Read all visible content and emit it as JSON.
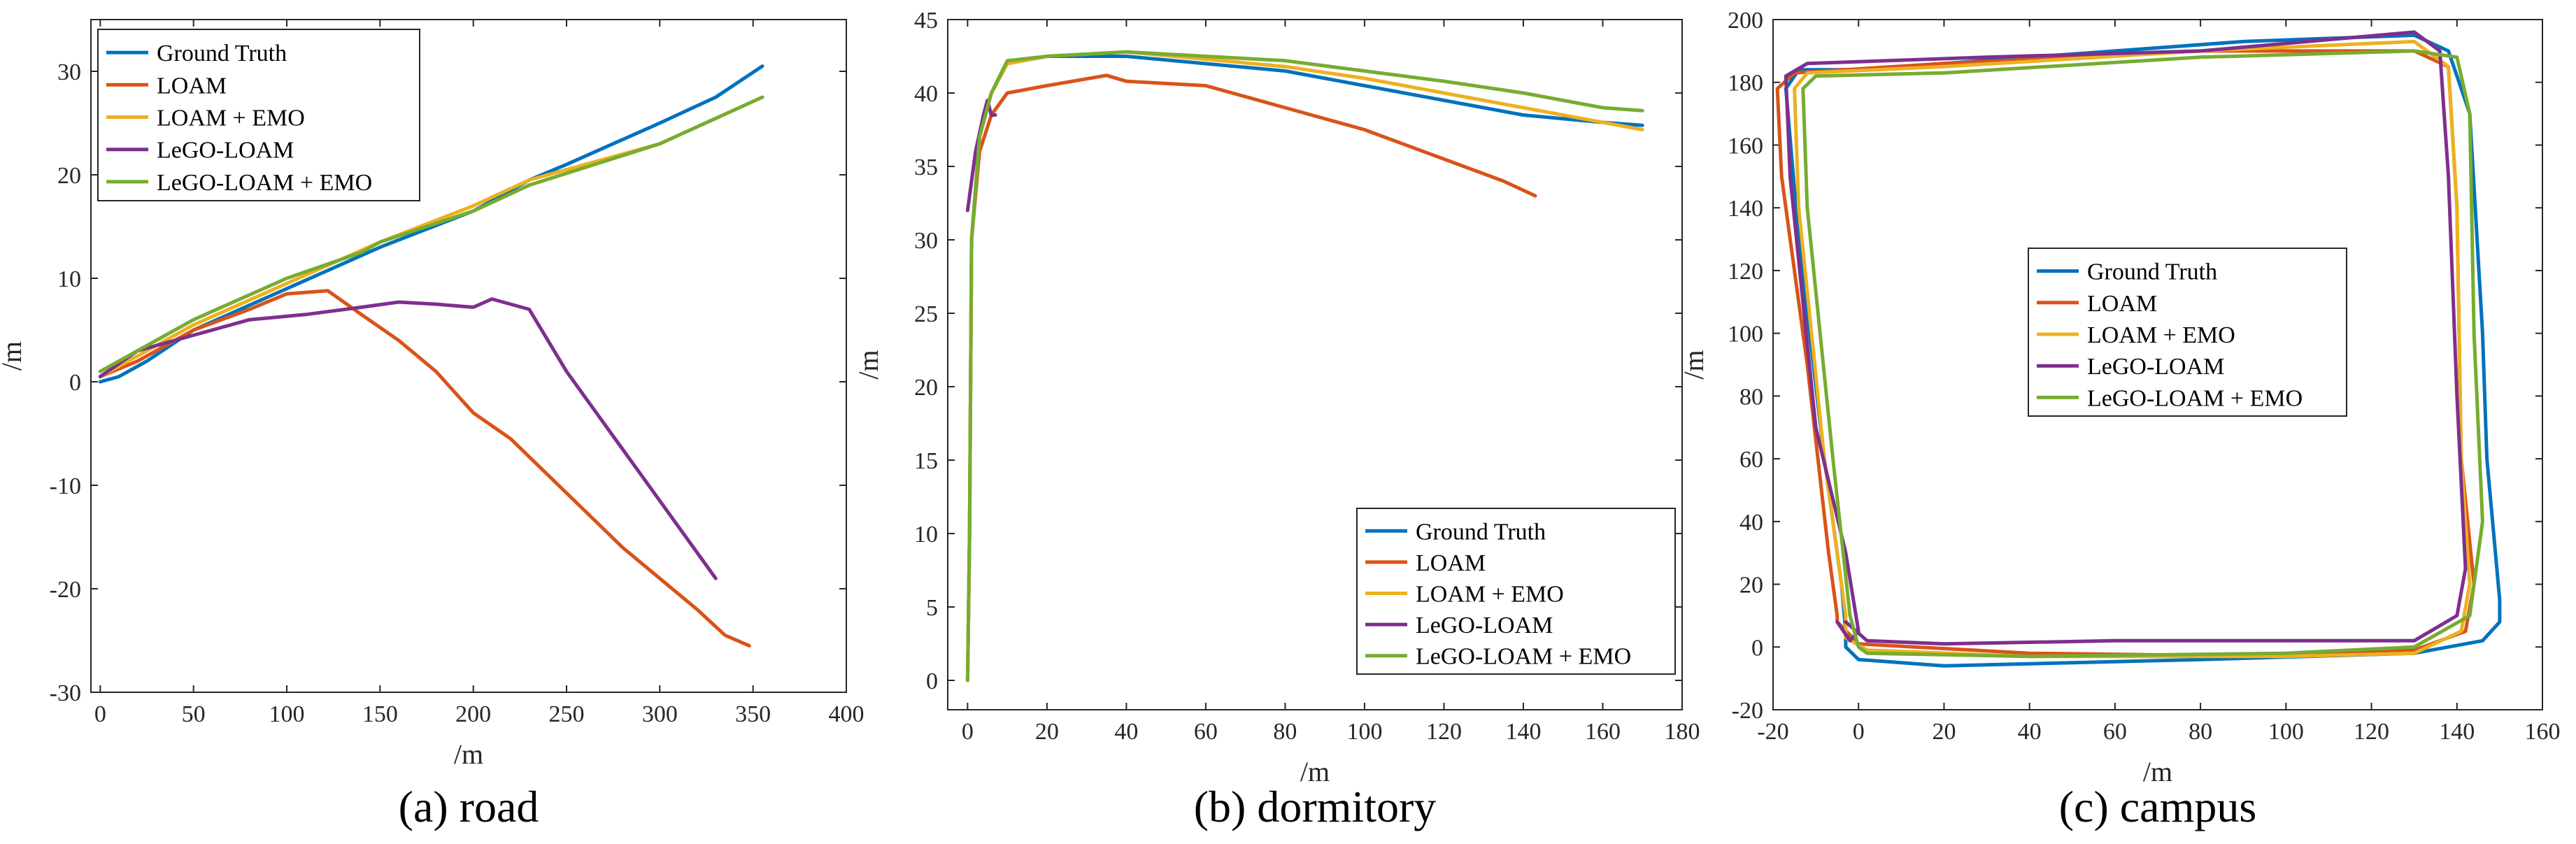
{
  "series_colors": {
    "Ground Truth": "#0072BD",
    "LOAM": "#D95319",
    "LOAM + EMO": "#EDB120",
    "LeGO-LOAM": "#7E2F8E",
    "LeGO-LOAM + EMO": "#77AC30"
  },
  "chart_data": [
    {
      "type": "line",
      "caption": "(a) road",
      "xlabel": "/m",
      "ylabel": "/m",
      "xlim": [
        -5,
        400
      ],
      "ylim": [
        -30,
        35
      ],
      "xticks": [
        0,
        50,
        100,
        150,
        200,
        250,
        300,
        350,
        400
      ],
      "yticks": [
        -30,
        -20,
        -10,
        0,
        10,
        20,
        30
      ],
      "legend_position": "top-left",
      "legend": [
        "Ground Truth",
        "LOAM",
        "LOAM + EMO",
        "LeGO-LOAM",
        "LeGO-LOAM + EMO"
      ],
      "series": [
        {
          "name": "Ground Truth",
          "x": [
            0,
            10,
            25,
            50,
            100,
            150,
            200,
            230,
            250,
            300,
            330,
            355
          ],
          "y": [
            0,
            0.5,
            2,
            5,
            9,
            13,
            16.5,
            19.5,
            21,
            25,
            27.5,
            30.5
          ]
        },
        {
          "name": "LOAM",
          "x": [
            0,
            20,
            50,
            80,
            100,
            122,
            140,
            160,
            180,
            200,
            220,
            240,
            260,
            280,
            300,
            320,
            335,
            348
          ],
          "y": [
            0.5,
            2,
            5,
            7,
            8.5,
            8.8,
            6.5,
            4,
            1,
            -3,
            -5.5,
            -9,
            -12.5,
            -16,
            -19,
            -22,
            -24.5,
            -25.5
          ]
        },
        {
          "name": "LOAM + EMO",
          "x": [
            0,
            20,
            50,
            100,
            150,
            200,
            230,
            300,
            355
          ],
          "y": [
            0.5,
            2.5,
            5.5,
            9.5,
            13.5,
            17,
            19.5,
            23,
            27.5
          ]
        },
        {
          "name": "LeGO-LOAM",
          "x": [
            0,
            20,
            50,
            80,
            110,
            140,
            160,
            180,
            200,
            210,
            230,
            250,
            270,
            290,
            310,
            330
          ],
          "y": [
            0.5,
            3,
            4.5,
            6,
            6.5,
            7.2,
            7.7,
            7.5,
            7.2,
            8,
            7,
            1,
            -4,
            -9,
            -14,
            -19
          ]
        },
        {
          "name": "LeGO-LOAM + EMO",
          "x": [
            0,
            20,
            50,
            100,
            140,
            150,
            200,
            230,
            300,
            355
          ],
          "y": [
            1,
            3,
            6,
            10,
            12.5,
            13.5,
            16.5,
            19,
            23,
            27.5
          ]
        }
      ]
    },
    {
      "type": "line",
      "caption": "(b) dormitory",
      "xlabel": "/m",
      "ylabel": "/m",
      "xlim": [
        -5,
        180
      ],
      "ylim": [
        -2,
        45
      ],
      "xticks": [
        0,
        20,
        40,
        60,
        80,
        100,
        120,
        140,
        160,
        180
      ],
      "yticks": [
        0,
        5,
        10,
        15,
        20,
        25,
        30,
        35,
        40,
        45
      ],
      "legend_position": "bottom-right",
      "legend": [
        "Ground Truth",
        "LOAM",
        "LOAM + EMO",
        "LeGO-LOAM",
        "LeGO-LOAM + EMO"
      ],
      "series": [
        {
          "name": "Ground Truth",
          "x": [
            0,
            0.5,
            1,
            3,
            6,
            10,
            20,
            40,
            60,
            80,
            100,
            120,
            140,
            160,
            170
          ],
          "y": [
            0,
            10,
            30,
            37,
            40,
            42,
            42.5,
            42.5,
            42,
            41.5,
            40.5,
            39.5,
            38.5,
            38,
            37.8
          ]
        },
        {
          "name": "LOAM",
          "x": [
            0,
            0.5,
            1,
            3,
            6,
            10,
            20,
            35,
            40,
            60,
            80,
            100,
            120,
            135,
            143
          ],
          "y": [
            0,
            10,
            30,
            36,
            38.5,
            40,
            40.5,
            41.2,
            40.8,
            40.5,
            39,
            37.5,
            35.5,
            34,
            33
          ]
        },
        {
          "name": "LOAM + EMO",
          "x": [
            0,
            0.5,
            1,
            3,
            6,
            10,
            20,
            40,
            60,
            80,
            100,
            120,
            140,
            160,
            170
          ],
          "y": [
            0,
            10,
            30,
            37,
            40,
            42,
            42.5,
            42.8,
            42.3,
            41.8,
            41,
            40,
            39,
            38,
            37.5
          ]
        },
        {
          "name": "LeGO-LOAM",
          "x": [
            0,
            2,
            4,
            5,
            6,
            7
          ],
          "y": [
            32,
            36,
            38.5,
            39.5,
            38.5,
            38.5
          ]
        },
        {
          "name": "LeGO-LOAM + EMO",
          "x": [
            0,
            0.5,
            1,
            3,
            6,
            10,
            20,
            40,
            60,
            80,
            100,
            120,
            140,
            160,
            170
          ],
          "y": [
            0,
            10,
            30,
            37,
            40,
            42.2,
            42.5,
            42.8,
            42.5,
            42.2,
            41.5,
            40.8,
            40,
            39,
            38.8
          ]
        }
      ]
    },
    {
      "type": "line",
      "caption": "(c) campus",
      "xlabel": "/m",
      "ylabel": "/m",
      "xlim": [
        -20,
        160
      ],
      "ylim": [
        -20,
        200
      ],
      "xticks": [
        -20,
        0,
        20,
        40,
        60,
        80,
        100,
        120,
        140,
        160
      ],
      "yticks": [
        -20,
        0,
        20,
        40,
        60,
        80,
        100,
        120,
        140,
        160,
        180,
        200
      ],
      "legend_position": "center",
      "legend": [
        "Ground Truth",
        "LOAM",
        "LOAM + EMO",
        "LeGO-LOAM",
        "LeGO-LOAM + EMO"
      ],
      "series": [
        {
          "name": "Ground Truth",
          "x": [
            -3,
            0,
            20,
            80,
            130,
            146,
            150,
            150,
            147,
            146,
            143,
            138,
            130,
            90,
            40,
            0,
            -14,
            -17,
            -14,
            -8,
            -4,
            -3,
            -3
          ],
          "y": [
            0,
            -4,
            -6,
            -4,
            -2,
            2,
            8,
            15,
            60,
            100,
            170,
            190,
            195,
            193,
            188,
            184,
            184,
            178,
            130,
            60,
            20,
            5,
            0
          ]
        },
        {
          "name": "LOAM",
          "x": [
            -5,
            0,
            40,
            100,
            130,
            142,
            144,
            141,
            140,
            138,
            130,
            80,
            20,
            -15,
            -19,
            -18,
            -12,
            -7,
            -5,
            -5
          ],
          "y": [
            8,
            1,
            -2,
            -3,
            -1,
            5,
            20,
            60,
            140,
            185,
            190,
            190,
            186,
            183,
            178,
            150,
            90,
            30,
            10,
            8
          ]
        },
        {
          "name": "LOAM + EMO",
          "x": [
            -3,
            2,
            40,
            100,
            130,
            141,
            143,
            141,
            140,
            138,
            130,
            80,
            20,
            -12,
            -15,
            -14,
            -8,
            -3,
            -3
          ],
          "y": [
            3,
            -1,
            -3,
            -3,
            -2,
            5,
            20,
            60,
            140,
            185,
            193,
            190,
            185,
            183,
            178,
            140,
            60,
            10,
            3
          ]
        },
        {
          "name": "LeGO-LOAM",
          "x": [
            -3,
            2,
            20,
            60,
            100,
            130,
            140,
            142,
            140,
            138,
            136,
            130,
            80,
            30,
            -12,
            -17,
            -16,
            -10,
            -3,
            0,
            -2,
            -5
          ],
          "y": [
            8,
            2,
            1,
            2,
            2,
            2,
            10,
            25,
            80,
            150,
            190,
            196,
            190,
            188,
            186,
            182,
            150,
            70,
            30,
            5,
            2,
            8
          ]
        },
        {
          "name": "LeGO-LOAM + EMO",
          "x": [
            0,
            2,
            40,
            100,
            130,
            143,
            146,
            144,
            143,
            140,
            130,
            80,
            20,
            -10,
            -13,
            -12,
            -6,
            -2,
            0
          ],
          "y": [
            0,
            -2,
            -3,
            -2,
            0,
            10,
            40,
            100,
            170,
            188,
            190,
            188,
            183,
            182,
            178,
            140,
            60,
            10,
            0
          ]
        }
      ]
    }
  ]
}
